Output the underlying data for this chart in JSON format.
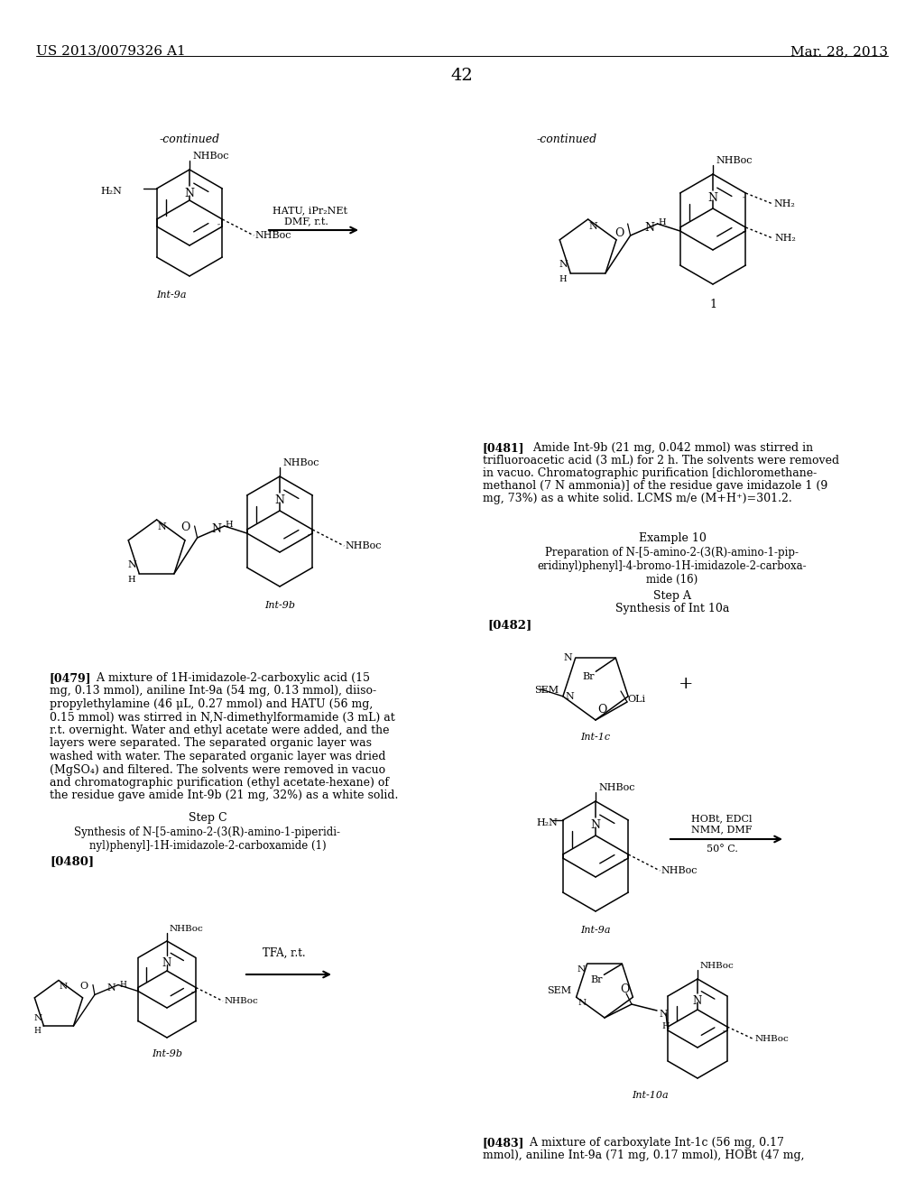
{
  "background": "#ffffff",
  "header_left": "US 2013/0079326 A1",
  "header_right": "Mar. 28, 2013",
  "page_number": "42",
  "continued_left": "-continued",
  "continued_right": "-continued",
  "para_0481": "[0481]  Amide Int-9b (21 mg, 0.042 mmol) was stirred in\ntrifluoroacetic acid (3 mL) for 2 h. The solvents were removed\nin vacuo. Chromatographic purification [dichloromethane-\nmethanol (7 N ammonia)] of the residue gave imidazole 1 (9\nmg, 73%) as a white solid. LCMS m/e (M+H⁺)=301.2.",
  "example10": "Example 10",
  "prep_title": "Preparation of N-[5-amino-2-(3(R)-amino-1-pip-\neridinyl)phenyl]-4-bromo-1H-imidazole-2-carboxa-\nmide (16)",
  "stepA": "Step A",
  "synth_10a": "Synthesis of Int 10a",
  "tag_0482": "[0482]",
  "para_0479": "[0479]  A mixture of 1H-imidazole-2-carboxylic acid (15\nmg, 0.13 mmol), aniline Int-9a (54 mg, 0.13 mmol), diiso-\npropylethylamine (46 μL, 0.27 mmol) and HATU (56 mg,\n0.15 mmol) was stirred in N,N-dimethylformamide (3 mL) at\nr.t. overnight. Water and ethyl acetate were added, and the\nlayers were separated. The separated organic layer was\nwashed with water. The separated organic layer was dried\n(MgSO₄) and filtered. The solvents were removed in vacuo\nand chromatographic purification (ethyl acetate-hexane) of\nthe residue gave amide Int-9b (21 mg, 32%) as a white solid.",
  "stepC": "Step C",
  "synth_1": "Synthesis of N-[5-amino-2-(3(R)-amino-1-piperidi-\nnyl)phenyl]-1H-imidazole-2-carboxamide (1)",
  "tag_0480": "[0480]",
  "para_0483": "[0483]  A mixture of carboxylate Int-1c (56 mg, 0.17\nmmol), aniline Int-9a (71 mg, 0.17 mmol), HOBt (47 mg,"
}
